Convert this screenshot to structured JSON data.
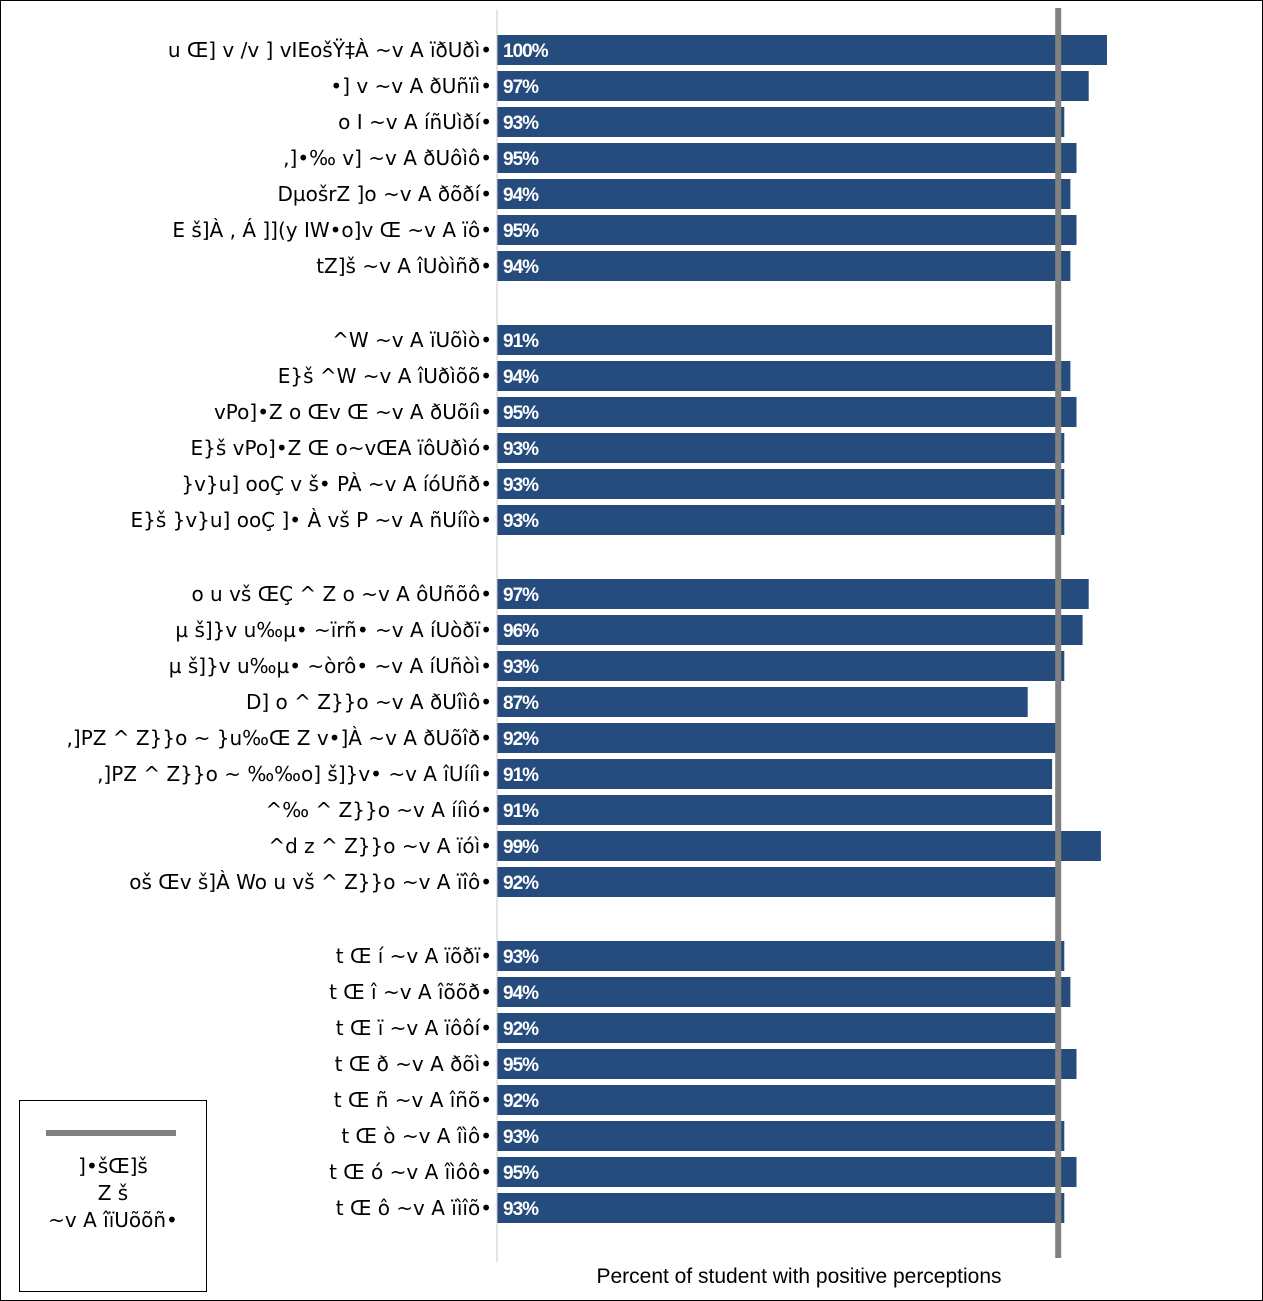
{
  "chart_data": {
    "type": "bar",
    "orientation": "horizontal",
    "xlabel": "Percent of student with positive perceptions",
    "bar_color": "#264c7e",
    "reference_line": {
      "value": 92,
      "color": "#808080"
    },
    "legend": {
      "text": "]•šŒ]š\nZ š\n~v A îïUõõñ•"
    },
    "groups": [
      [
        {
          "label": "u Œ]  v /v ]  vIEošŸ‡À  ~v A ïðUðì•",
          "value": 100,
          "value_label": "100%"
        },
        {
          "label": "•] v  ~v A ðUñïì•",
          "value": 97,
          "value_label": "97%"
        },
        {
          "label": "o  I  ~v A íñUìðí•",
          "value": 93,
          "value_label": "93%"
        },
        {
          "label": ",]•‰ v]  ~v A ðUôìô•",
          "value": 95,
          "value_label": "95%"
        },
        {
          "label": "DµošrZ  ]o  ~v A ðõðí•",
          "value": 94,
          "value_label": "94%"
        },
        {
          "label": "E  š]À  , Á ]](y IW•o]v  Œ ~v A ïô•",
          "value": 95,
          "value_label": "95%"
        },
        {
          "label": "tZ]š  ~v A îUòìñð•",
          "value": 94,
          "value_label": "94%"
        }
      ],
      [
        {
          "label": "^W    ~v A  ïUõìò•",
          "value": 91,
          "value_label": "91%"
        },
        {
          "label": "E}š ^W    ~v A îUðìõõ•",
          "value": 94,
          "value_label": "94%"
        },
        {
          "label": "vPo]•Z  o   Œv  Œ ~v A ðUõíì•",
          "value": 95,
          "value_label": "95%"
        },
        {
          "label": "E}š   vPo]•Z Œ o~vŒA ïôUðìó•",
          "value": 93,
          "value_label": "93%"
        },
        {
          "label": "}v}u]  ooÇ v  š• PÀ  ~v A íóUñð•",
          "value": 93,
          "value_label": "93%"
        },
        {
          "label": "E}š  }v}u]  ooÇ  ]•  À vš P  ~v A ñUíîò•",
          "value": 93,
          "value_label": "93%"
        }
      ],
      [
        {
          "label": "o  u vš ŒÇ  ^  Z o ~v A ôUñõô•",
          "value": 97,
          "value_label": "97%"
        },
        {
          "label": "µ  š]}v   u‰µ• ~ïrñ•  ~v A íUòðï•",
          "value": 96,
          "value_label": "96%"
        },
        {
          "label": "µ  š]}v   u‰µ• ~òrô•  ~v A  íUñòì•",
          "value": 93,
          "value_label": "93%"
        },
        {
          "label": "D]   o  ^ Z}}o ~v A ðUîìô•",
          "value": 87,
          "value_label": "87%"
        },
        {
          "label": ",]PZ ^ Z}}o ~ }u‰Œ Z v•]À  ~v A ðUõîð•",
          "value": 92,
          "value_label": "92%"
        },
        {
          "label": ",]PZ ^ Z}}o ~ ‰‰o]  š]}v•  ~v A îUííì•",
          "value": 91,
          "value_label": "91%"
        },
        {
          "label": "^‰   ^ Z}}o ~v A ííìó•",
          "value": 91,
          "value_label": "91%"
        },
        {
          "label": "^d z ^ Z}}o ~v A ïóì•",
          "value": 99,
          "value_label": "99%"
        },
        {
          "label": "oš Œv š]À  Wo   u vš ^ Z}}o ~v A ïîô•",
          "value": 92,
          "value_label": "92%"
        }
      ],
      [
        {
          "label": "t Œ   í ~v A ïõðï•",
          "value": 93,
          "value_label": "93%"
        },
        {
          "label": "t Œ   î ~v A îõõð•",
          "value": 94,
          "value_label": "94%"
        },
        {
          "label": "t Œ   ï ~v A ïôôí•",
          "value": 92,
          "value_label": "92%"
        },
        {
          "label": "t Œ   ð ~v A ðõì•",
          "value": 95,
          "value_label": "95%"
        },
        {
          "label": "t Œ   ñ ~v A îñõ•",
          "value": 92,
          "value_label": "92%"
        },
        {
          "label": "t Œ   ò ~v A îìô•",
          "value": 93,
          "value_label": "93%"
        },
        {
          "label": "t Œ   ó ~v A îìôô•",
          "value": 95,
          "value_label": "95%"
        },
        {
          "label": "t Œ   ô ~v A ïìîõ•",
          "value": 93,
          "value_label": "93%"
        }
      ]
    ]
  }
}
